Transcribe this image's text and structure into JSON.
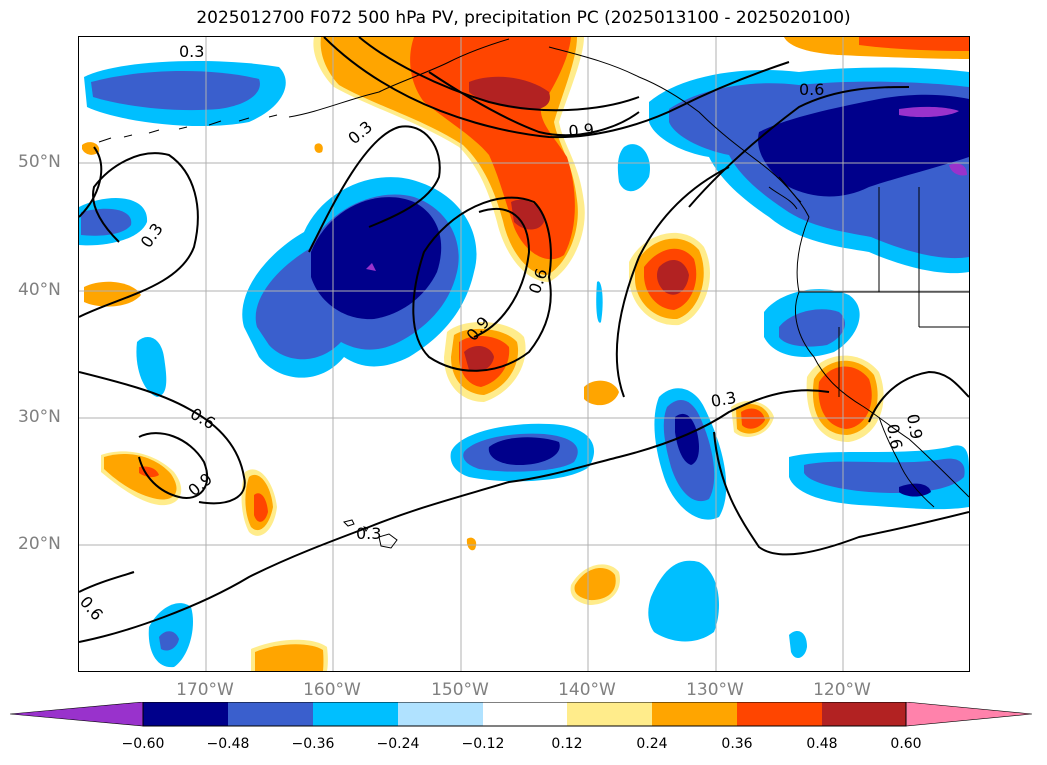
{
  "title": "2025012700 F072 500 hPa PV, precipitation PC (2025013100 - 2025020100)",
  "lat_labels": [
    "50°N",
    "40°N",
    "30°N",
    "20°N"
  ],
  "lon_labels": [
    "170°W",
    "160°W",
    "150°W",
    "140°W",
    "130°W",
    "120°W"
  ],
  "contour_labels": [
    "0.3",
    "0.3",
    "0.3",
    "0.3",
    "0.3",
    "0.6",
    "0.6",
    "0.6",
    "0.6",
    "0.6",
    "0.9",
    "0.9",
    "0.9",
    "0.9"
  ],
  "colorbar": {
    "ticks": [
      "−0.60",
      "−0.48",
      "−0.36",
      "−0.24",
      "−0.12",
      "0.12",
      "0.24",
      "0.36",
      "0.48",
      "0.60"
    ],
    "colors": [
      "#9932cc",
      "#00008b",
      "#3a5fcd",
      "#00bfff",
      "#b0e2ff",
      "#ffffff",
      "#ffec8b",
      "#ffa500",
      "#ff4500",
      "#b22222",
      "#ff82ab"
    ]
  },
  "colors": {
    "deep_purple": "#9932cc",
    "dark_blue": "#00008b",
    "royal_blue": "#3a5fcd",
    "sky_blue": "#00bfff",
    "light_blue": "#b0e2ff",
    "light_yellow": "#ffec8b",
    "orange": "#ffa500",
    "orange_red": "#ff4500",
    "firebrick": "#b22222",
    "pink": "#ff82ab"
  }
}
